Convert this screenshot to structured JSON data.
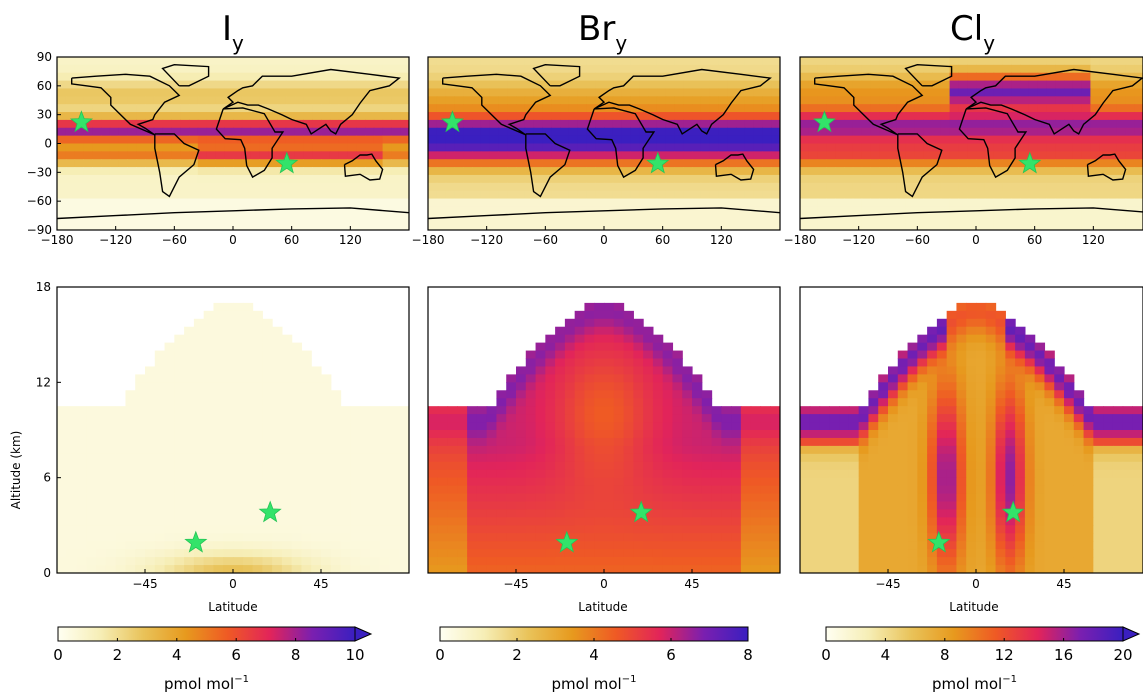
{
  "panels": [
    {
      "title_main": "I",
      "title_sub": "y"
    },
    {
      "title_main": "Br",
      "title_sub": "y"
    },
    {
      "title_main": "Cl",
      "title_sub": "y"
    }
  ],
  "colormap_stops": [
    "#fffff2",
    "#f6eeb6",
    "#e9c35a",
    "#e79a1e",
    "#ef5a24",
    "#e2245a",
    "#7a1fb0",
    "#3a1fc0"
  ],
  "chart_data": [
    {
      "type": "heatmap",
      "panel": "Iy-map",
      "title": "Iy",
      "xlim": [
        -180,
        180
      ],
      "ylim": [
        -90,
        90
      ],
      "xticks": [
        -180,
        -120,
        -60,
        0,
        60,
        120
      ],
      "yticks": [
        90,
        60,
        30,
        0,
        -30,
        -60,
        -90
      ],
      "markers": [
        {
          "x": -155,
          "y": 22
        },
        {
          "x": 55,
          "y": -21
        }
      ]
    },
    {
      "type": "heatmap",
      "panel": "Bry-map",
      "title": "Bry",
      "xlim": [
        -180,
        180
      ],
      "ylim": [
        -90,
        90
      ],
      "xticks": [
        -180,
        -120,
        -60,
        0,
        60,
        120
      ],
      "markers": [
        {
          "x": -155,
          "y": 22
        },
        {
          "x": 55,
          "y": -21
        }
      ]
    },
    {
      "type": "heatmap",
      "panel": "Cly-map",
      "title": "Cly",
      "xlim": [
        -180,
        180
      ],
      "ylim": [
        -90,
        90
      ],
      "xticks": [
        -180,
        -120,
        -60,
        0,
        60,
        120
      ],
      "markers": [
        {
          "x": -155,
          "y": 22
        },
        {
          "x": 55,
          "y": -21
        }
      ]
    },
    {
      "type": "heatmap",
      "panel": "Iy-section",
      "xlabel": "Latitude",
      "ylabel": "Altitude (km)",
      "xlim": [
        -90,
        90
      ],
      "ylim": [
        0,
        18
      ],
      "xticks": [
        -45,
        0,
        45
      ],
      "yticks": [
        18,
        12,
        6,
        0
      ],
      "markers": [
        {
          "x": -19,
          "y": 1.9
        },
        {
          "x": 19,
          "y": 3.8
        }
      ]
    },
    {
      "type": "heatmap",
      "panel": "Bry-section",
      "xlabel": "Latitude",
      "xlim": [
        -90,
        90
      ],
      "ylim": [
        0,
        18
      ],
      "xticks": [
        -45,
        0,
        45
      ],
      "markers": [
        {
          "x": -19,
          "y": 1.9
        },
        {
          "x": 19,
          "y": 3.8
        }
      ]
    },
    {
      "type": "heatmap",
      "panel": "Cly-section",
      "xlabel": "Latitude",
      "xlim": [
        -90,
        90
      ],
      "ylim": [
        0,
        18
      ],
      "xticks": [
        -45,
        0,
        45
      ],
      "markers": [
        {
          "x": -19,
          "y": 1.9
        },
        {
          "x": 19,
          "y": 3.8
        }
      ]
    }
  ],
  "colorbars": [
    {
      "ticks": [
        "0",
        "2",
        "4",
        "6",
        "8",
        "10"
      ],
      "range": [
        0,
        10
      ],
      "extend": "max",
      "label_main": "pmol mol",
      "label_sup": "−1"
    },
    {
      "ticks": [
        "0",
        "2",
        "4",
        "6",
        "8"
      ],
      "range": [
        0,
        8
      ],
      "extend": "none",
      "label_main": "pmol mol",
      "label_sup": "−1"
    },
    {
      "ticks": [
        "0",
        "4",
        "8",
        "12",
        "16",
        "20"
      ],
      "range": [
        0,
        20
      ],
      "extend": "max",
      "label_main": "pmol mol",
      "label_sup": "−1"
    }
  ]
}
